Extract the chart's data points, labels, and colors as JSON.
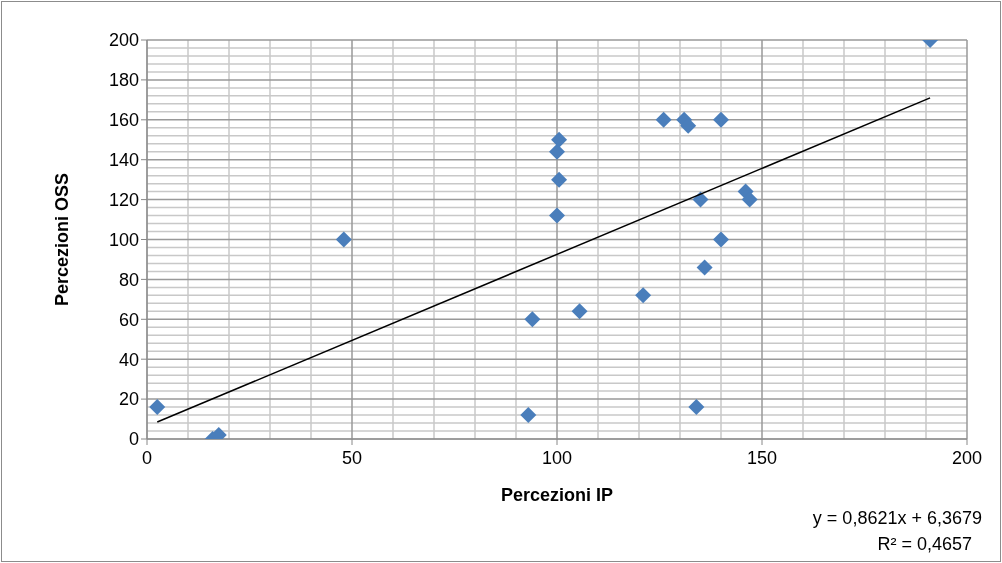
{
  "chart_data": {
    "type": "scatter",
    "xlabel": "Percezioni IP",
    "ylabel": "Percezioni OSS",
    "xlim": [
      0,
      200
    ],
    "xticks": [
      0,
      50,
      100,
      150,
      200
    ],
    "ylim": [
      0,
      200
    ],
    "yticks": [
      0,
      20,
      40,
      60,
      80,
      100,
      120,
      140,
      160,
      180,
      200
    ],
    "grid": true,
    "series": [
      {
        "marker": "diamond",
        "color": "#4a7ebb",
        "x": [
          2.5,
          16,
          17.5,
          48,
          93,
          94,
          100,
          100.5,
          100,
          100.5,
          105.5,
          121,
          126,
          131,
          132,
          140,
          134,
          135,
          136,
          140,
          146,
          147,
          191
        ],
        "values": [
          16,
          0,
          2,
          100,
          12,
          60,
          112,
          130,
          144,
          150,
          64,
          72,
          160,
          160,
          157,
          160,
          16,
          120,
          86,
          100,
          124,
          120,
          200
        ]
      },
      {
        "type": "line",
        "marker": "none",
        "color": "#000000",
        "x": [
          2.5,
          191
        ],
        "values": [
          8.5,
          171
        ]
      }
    ],
    "annotations": [
      "y = 0,8621x + 6,3679",
      "R² = 0,4657"
    ]
  }
}
